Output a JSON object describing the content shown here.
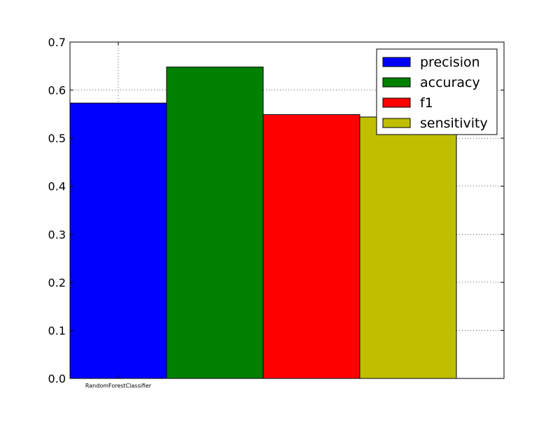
{
  "chart_data": {
    "type": "bar",
    "title": "",
    "xlabel": "",
    "ylabel": "",
    "categories": [
      "RandomForestClassifier"
    ],
    "ylim": [
      0,
      0.7
    ],
    "yticks": [
      "0.0",
      "0.1",
      "0.2",
      "0.3",
      "0.4",
      "0.5",
      "0.6",
      "0.7"
    ],
    "grid": true,
    "legend_position": "top-right",
    "series": [
      {
        "name": "precision",
        "values": [
          0.573
        ],
        "color": "#0000ff"
      },
      {
        "name": "accuracy",
        "values": [
          0.648
        ],
        "color": "#008000"
      },
      {
        "name": "f1",
        "values": [
          0.549
        ],
        "color": "#ff0000"
      },
      {
        "name": "sensitivity",
        "values": [
          0.544
        ],
        "color": "#bfbf00"
      }
    ]
  }
}
